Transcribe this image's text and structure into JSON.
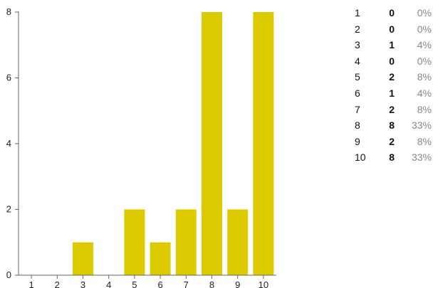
{
  "colors": {
    "bar": "#dccb00",
    "axis": "#666666",
    "pct_text": "#888888"
  },
  "chart_data": {
    "type": "bar",
    "categories": [
      "1",
      "2",
      "3",
      "4",
      "5",
      "6",
      "7",
      "8",
      "9",
      "10"
    ],
    "values": [
      0,
      0,
      1,
      0,
      2,
      1,
      2,
      8,
      2,
      8
    ],
    "y_ticks": [
      "0",
      "2",
      "4",
      "6",
      "8"
    ],
    "ylim": [
      0,
      8
    ],
    "grid": false,
    "title": "",
    "xlabel": "",
    "ylabel": ""
  },
  "summary": [
    {
      "score": "1",
      "count": "0",
      "percent": "0%"
    },
    {
      "score": "2",
      "count": "0",
      "percent": "0%"
    },
    {
      "score": "3",
      "count": "1",
      "percent": "4%"
    },
    {
      "score": "4",
      "count": "0",
      "percent": "0%"
    },
    {
      "score": "5",
      "count": "2",
      "percent": "8%"
    },
    {
      "score": "6",
      "count": "1",
      "percent": "4%"
    },
    {
      "score": "7",
      "count": "2",
      "percent": "8%"
    },
    {
      "score": "8",
      "count": "8",
      "percent": "33%"
    },
    {
      "score": "9",
      "count": "2",
      "percent": "8%"
    },
    {
      "score": "10",
      "count": "8",
      "percent": "33%"
    }
  ]
}
